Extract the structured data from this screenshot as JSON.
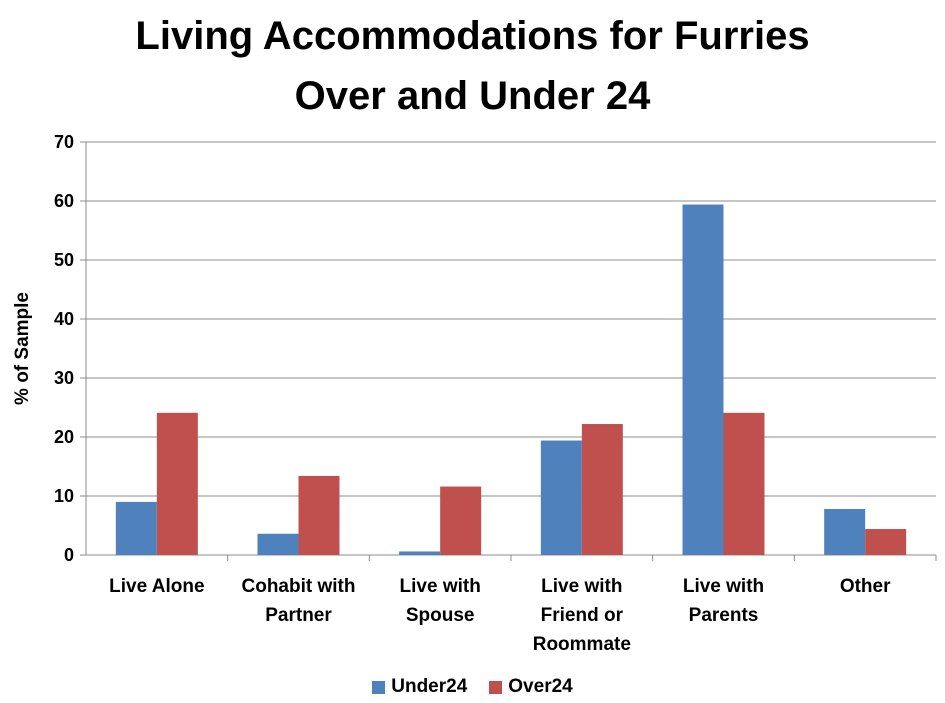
{
  "chart_data": {
    "type": "bar",
    "title_lines": [
      "Living Accommodations for Furries",
      "Over and Under 24"
    ],
    "xlabel": "",
    "ylabel": "% of Sample",
    "ylim": [
      0,
      70
    ],
    "yticks": [
      0,
      10,
      20,
      30,
      40,
      50,
      60,
      70
    ],
    "grid": true,
    "legend_position": "bottom",
    "categories": [
      [
        "Live Alone"
      ],
      [
        "Cohabit with",
        "Partner"
      ],
      [
        "Live with",
        "Spouse"
      ],
      [
        "Live with",
        "Friend or",
        "Roommate"
      ],
      [
        "Live with",
        "Parents"
      ],
      [
        "Other"
      ]
    ],
    "series": [
      {
        "name": "Under24",
        "color": "#4f81bd",
        "values": [
          9,
          3.6,
          0.6,
          19.4,
          59.4,
          7.8
        ]
      },
      {
        "name": "Over24",
        "color": "#c0504d",
        "values": [
          24.1,
          13.4,
          11.6,
          22.2,
          24.1,
          4.4
        ]
      }
    ]
  }
}
